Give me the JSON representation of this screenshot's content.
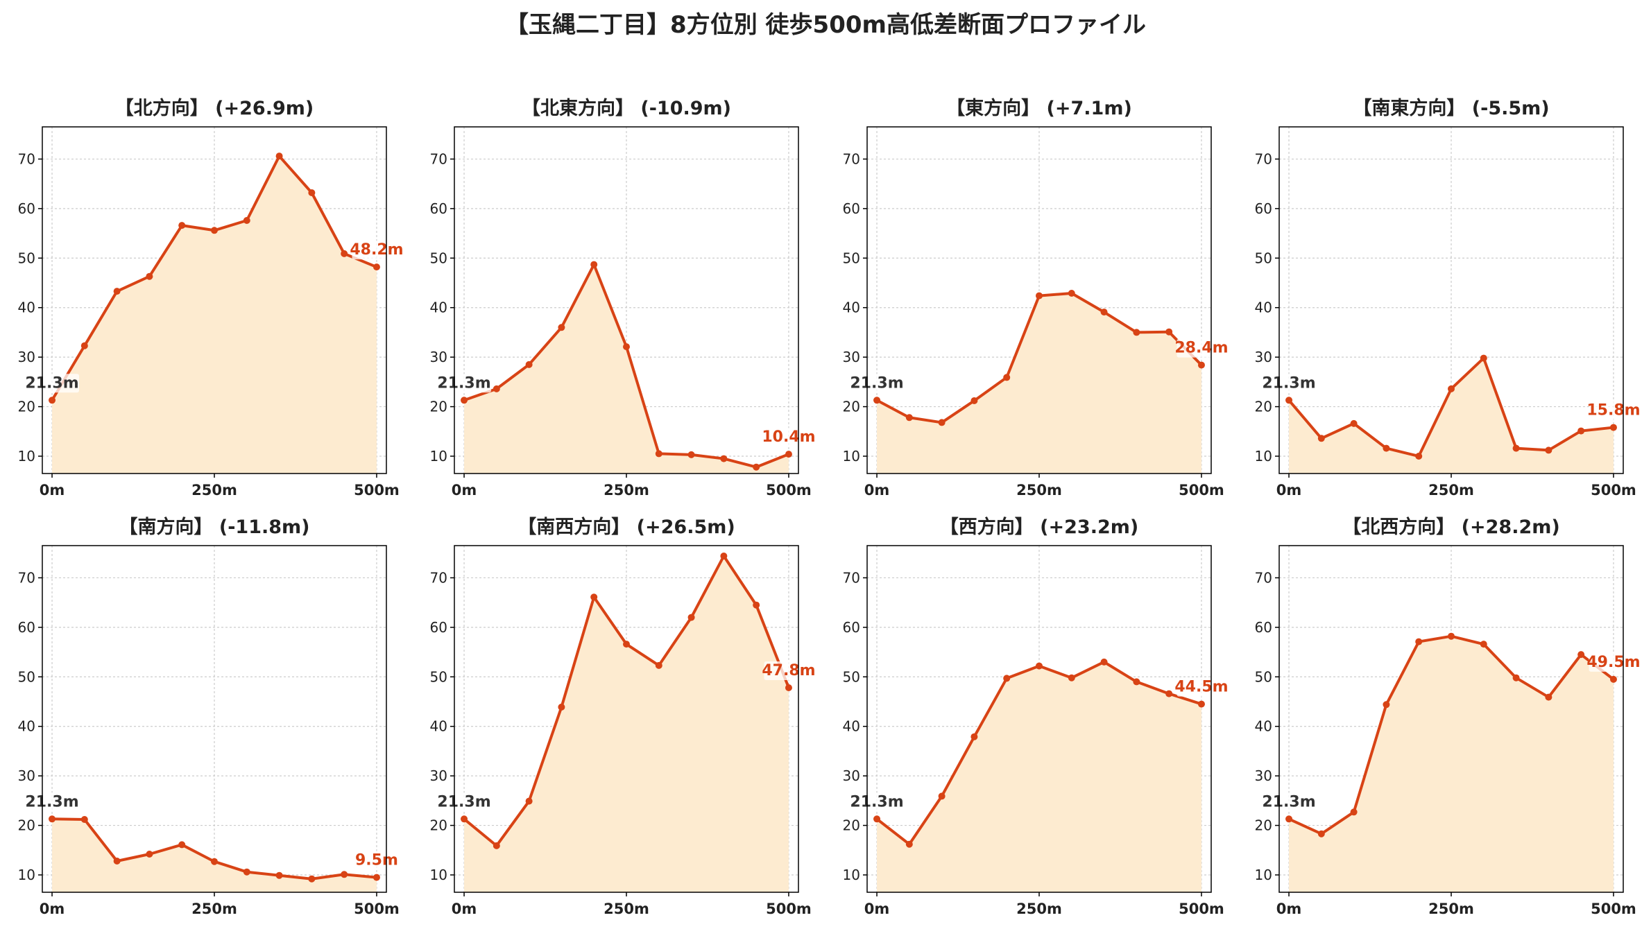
{
  "title": "【玉縄二丁目】8方位別 徒歩500m高低差断面プロファイル",
  "colors": {
    "line": "#d84315",
    "fill": "#fdebd0",
    "start_label": "#333333",
    "end_label": "#d84315",
    "grid": "#cccccc",
    "axis": "#000000"
  },
  "chart_data": [
    {
      "type": "area",
      "title": "【北方向】 (+26.9m)",
      "x": [
        0,
        50,
        100,
        150,
        200,
        250,
        300,
        350,
        400,
        450,
        500
      ],
      "values": [
        21.3,
        32.3,
        43.3,
        46.3,
        56.6,
        55.6,
        57.6,
        70.6,
        63.2,
        50.9,
        48.2
      ],
      "start_label": "21.3m",
      "end_label": "48.2m",
      "ylim": [
        6.5,
        76.5
      ],
      "yticks": [
        10,
        20,
        30,
        40,
        50,
        60,
        70
      ],
      "xticks": [
        "0m",
        "250m",
        "500m"
      ],
      "grid": true
    },
    {
      "type": "area",
      "title": "【北東方向】 (-10.9m)",
      "x": [
        0,
        50,
        100,
        150,
        200,
        250,
        300,
        350,
        400,
        450,
        500
      ],
      "values": [
        21.3,
        23.6,
        28.5,
        36.0,
        48.7,
        32.1,
        10.5,
        10.3,
        9.5,
        7.8,
        10.4
      ],
      "start_label": "21.3m",
      "end_label": "10.4m",
      "ylim": [
        6.5,
        76.5
      ],
      "yticks": [
        10,
        20,
        30,
        40,
        50,
        60,
        70
      ],
      "xticks": [
        "0m",
        "250m",
        "500m"
      ],
      "grid": true
    },
    {
      "type": "area",
      "title": "【東方向】 (+7.1m)",
      "x": [
        0,
        50,
        100,
        150,
        200,
        250,
        300,
        350,
        400,
        450,
        500
      ],
      "values": [
        21.3,
        17.8,
        16.8,
        21.2,
        25.9,
        42.4,
        42.9,
        39.1,
        35.0,
        35.1,
        28.4
      ],
      "start_label": "21.3m",
      "end_label": "28.4m",
      "ylim": [
        6.5,
        76.5
      ],
      "yticks": [
        10,
        20,
        30,
        40,
        50,
        60,
        70
      ],
      "xticks": [
        "0m",
        "250m",
        "500m"
      ],
      "grid": true
    },
    {
      "type": "area",
      "title": "【南東方向】 (-5.5m)",
      "x": [
        0,
        50,
        100,
        150,
        200,
        250,
        300,
        350,
        400,
        450,
        500
      ],
      "values": [
        21.3,
        13.6,
        16.6,
        11.6,
        10.0,
        23.6,
        29.8,
        11.6,
        11.2,
        15.1,
        15.8
      ],
      "start_label": "21.3m",
      "end_label": "15.8m",
      "ylim": [
        6.5,
        76.5
      ],
      "yticks": [
        10,
        20,
        30,
        40,
        50,
        60,
        70
      ],
      "xticks": [
        "0m",
        "250m",
        "500m"
      ],
      "grid": true
    },
    {
      "type": "area",
      "title": "【南方向】 (-11.8m)",
      "x": [
        0,
        50,
        100,
        150,
        200,
        250,
        300,
        350,
        400,
        450,
        500
      ],
      "values": [
        21.3,
        21.2,
        12.8,
        14.2,
        16.1,
        12.7,
        10.6,
        9.9,
        9.2,
        10.1,
        9.5
      ],
      "start_label": "21.3m",
      "end_label": "9.5m",
      "ylim": [
        6.5,
        76.5
      ],
      "yticks": [
        10,
        20,
        30,
        40,
        50,
        60,
        70
      ],
      "xticks": [
        "0m",
        "250m",
        "500m"
      ],
      "grid": true
    },
    {
      "type": "area",
      "title": "【南西方向】 (+26.5m)",
      "x": [
        0,
        50,
        100,
        150,
        200,
        250,
        300,
        350,
        400,
        450,
        500
      ],
      "values": [
        21.3,
        15.9,
        24.9,
        43.9,
        66.1,
        56.6,
        52.3,
        62.0,
        74.4,
        64.5,
        47.8
      ],
      "start_label": "21.3m",
      "end_label": "47.8m",
      "ylim": [
        6.5,
        76.5
      ],
      "yticks": [
        10,
        20,
        30,
        40,
        50,
        60,
        70
      ],
      "xticks": [
        "0m",
        "250m",
        "500m"
      ],
      "grid": true
    },
    {
      "type": "area",
      "title": "【西方向】 (+23.2m)",
      "x": [
        0,
        50,
        100,
        150,
        200,
        250,
        300,
        350,
        400,
        450,
        500
      ],
      "values": [
        21.3,
        16.2,
        25.9,
        37.9,
        49.7,
        52.2,
        49.8,
        53.0,
        49.0,
        46.6,
        44.5
      ],
      "start_label": "21.3m",
      "end_label": "44.5m",
      "ylim": [
        6.5,
        76.5
      ],
      "yticks": [
        10,
        20,
        30,
        40,
        50,
        60,
        70
      ],
      "xticks": [
        "0m",
        "250m",
        "500m"
      ],
      "grid": true
    },
    {
      "type": "area",
      "title": "【北西方向】 (+28.2m)",
      "x": [
        0,
        50,
        100,
        150,
        200,
        250,
        300,
        350,
        400,
        450,
        500
      ],
      "values": [
        21.3,
        18.3,
        22.7,
        44.4,
        57.1,
        58.2,
        56.6,
        49.8,
        45.9,
        54.5,
        49.5
      ],
      "start_label": "21.3m",
      "end_label": "49.5m",
      "ylim": [
        6.5,
        76.5
      ],
      "yticks": [
        10,
        20,
        30,
        40,
        50,
        60,
        70
      ],
      "xticks": [
        "0m",
        "250m",
        "500m"
      ],
      "grid": true
    }
  ]
}
